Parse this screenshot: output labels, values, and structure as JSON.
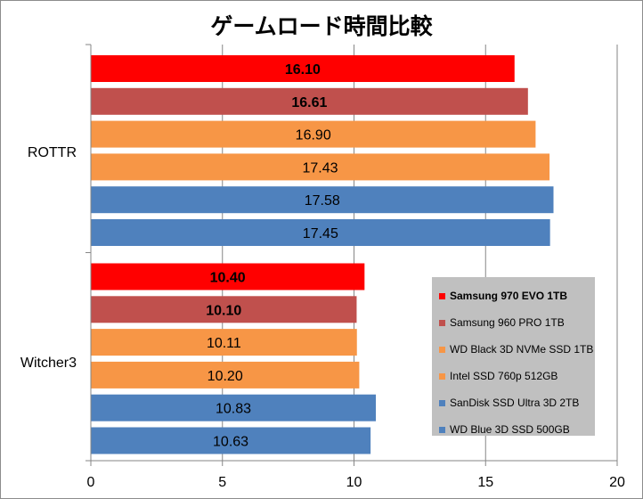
{
  "chart_data": {
    "type": "bar",
    "orientation": "horizontal",
    "title": "ゲームロード時間比較",
    "categories": [
      "ROTTR",
      "Witcher3"
    ],
    "xlim": [
      0,
      20
    ],
    "xticks": [
      0,
      5,
      10,
      15,
      20
    ],
    "grid": true,
    "legend_position": "bottom-right",
    "series": [
      {
        "name": "Samsung 970 EVO 1TB",
        "color": "#ff0000",
        "bold": true,
        "values": [
          16.1,
          10.4
        ],
        "labels": [
          "16.10",
          "10.40"
        ]
      },
      {
        "name": "Samsung 960 PRO 1TB",
        "color": "#c0504d",
        "bold": false,
        "label_bold": true,
        "values": [
          16.61,
          10.1
        ],
        "labels": [
          "16.61",
          "10.10"
        ]
      },
      {
        "name": "WD Black 3D NVMe SSD 1TB",
        "color": "#f79646",
        "bold": false,
        "values": [
          16.9,
          10.11
        ],
        "labels": [
          "16.90",
          "10.11"
        ]
      },
      {
        "name": "Intel SSD 760p 512GB",
        "color": "#f79646",
        "bold": false,
        "values": [
          17.43,
          10.2
        ],
        "labels": [
          "17.43",
          "10.20"
        ]
      },
      {
        "name": "SanDisk SSD Ultra 3D 2TB",
        "color": "#4f81bd",
        "bold": false,
        "values": [
          17.58,
          10.83
        ],
        "labels": [
          "17.58",
          "10.83"
        ]
      },
      {
        "name": "WD Blue 3D SSD 500GB",
        "color": "#4f81bd",
        "bold": false,
        "values": [
          17.45,
          10.63
        ],
        "labels": [
          "17.45",
          "10.63"
        ]
      }
    ]
  }
}
